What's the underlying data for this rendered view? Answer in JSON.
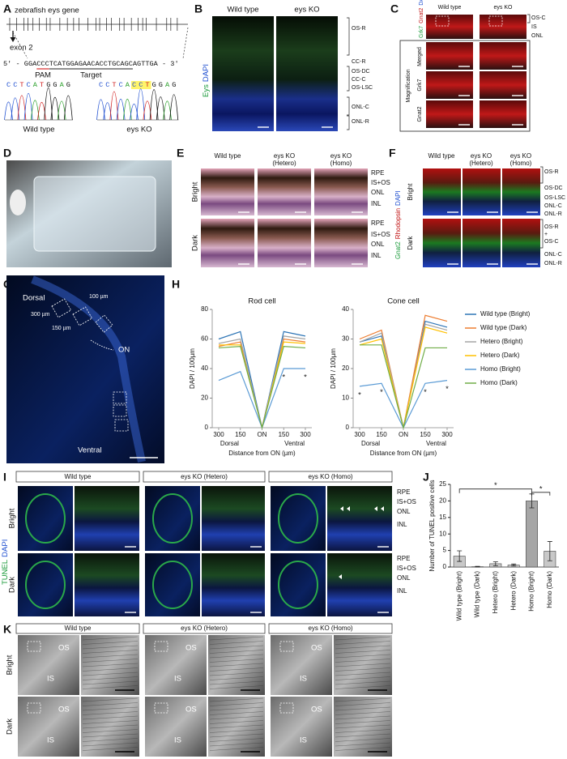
{
  "panels": {
    "labels": [
      "A",
      "B",
      "C",
      "D",
      "E",
      "F",
      "G",
      "H",
      "I",
      "J",
      "K"
    ],
    "A": {
      "gene": "zebrafish eys gene",
      "exon": "exon 2",
      "five": "5' - ",
      "seq": "GGACCCTCATGGAGAACACCTGCAGCAGTTGA",
      "three": " - 3'",
      "pam": "PAM",
      "target": "Target",
      "wt_seq": "CCTCATGGAG",
      "ko_seq": "CCTCACCTGGAG",
      "wt": "Wild type",
      "ko": "eys KO"
    },
    "B": {
      "columns": [
        "Wild type",
        "eys KO"
      ],
      "stain": [
        "Eys",
        "DAPI"
      ],
      "layers": [
        "OS-R",
        "CC-R",
        "OS-DC",
        "CC-C",
        "OS-LSC",
        "ONL-C",
        "ONL-R"
      ]
    },
    "C": {
      "columns": [
        "Wild type",
        "eys KO"
      ],
      "stain": [
        "Grk7",
        "Gnat2",
        "DAPI"
      ],
      "layers": [
        "OS-C",
        "IS",
        "ONL"
      ],
      "magnification": "Magnification",
      "rows": [
        "Merged",
        "Grk7",
        "Gnat2"
      ]
    },
    "E": {
      "columns": [
        [
          "Wild type"
        ],
        [
          "eys KO",
          "(Hetero)"
        ],
        [
          "eys KO",
          "(Homo)"
        ]
      ],
      "rows": [
        "Bright",
        "Dark"
      ],
      "layers": [
        "RPE",
        "IS+OS",
        "ONL",
        "INL"
      ]
    },
    "F": {
      "columns": [
        [
          "Wild type"
        ],
        [
          "eys KO",
          "(Hetero)"
        ],
        [
          "eys KO",
          "(Homo)"
        ]
      ],
      "stain": [
        "Gnat2",
        "Rhodopsin",
        "DAPI"
      ],
      "rows": [
        "Bright",
        "Dark"
      ],
      "layers_bright": [
        "OS-R",
        "OS-DC",
        "OS-LSC",
        "ONL-C",
        "ONL-R"
      ],
      "layers_dark": [
        "OS-R",
        "+",
        "OS-C",
        "ONL-C",
        "ONL-R"
      ]
    },
    "G": {
      "labels": [
        "Dorsal",
        "100 µm",
        "300 µm",
        "150 µm",
        "ON",
        "Ventral"
      ]
    },
    "I": {
      "columns": [
        "Wild type",
        "eys KO (Hetero)",
        "eys KO (Homo)"
      ],
      "stain": [
        "TUNEL",
        "DAPI"
      ],
      "rows": [
        "Bright",
        "Dark"
      ],
      "layers": [
        "RPE",
        "IS+OS",
        "ONL",
        "INL"
      ]
    },
    "K": {
      "columns": [
        "Wild type",
        "eys KO (Hetero)",
        "eys KO (Homo)"
      ],
      "rows": [
        "Bright",
        "Dark"
      ],
      "os": "OS",
      "is": "IS"
    }
  },
  "chart_data": [
    {
      "type": "line",
      "title": "Rod cell",
      "categories": [
        "300",
        "150",
        "ON",
        "150",
        "300"
      ],
      "regions": [
        "Dorsal",
        "Ventral"
      ],
      "xlabel": "Distance from ON (µm)",
      "ylabel": "DAPI / 100µm",
      "ylim": [
        0,
        80
      ],
      "yticks": [
        0,
        20,
        40,
        60,
        80
      ],
      "annotations": [
        "*",
        "*"
      ],
      "series": [
        {
          "color": "#2e75b6",
          "values": [
            60,
            65,
            0,
            65,
            62
          ]
        },
        {
          "color": "#ed7d31",
          "values": [
            55,
            58,
            0,
            60,
            58
          ]
        },
        {
          "color": "#a5a5a5",
          "values": [
            57,
            60,
            0,
            62,
            60
          ]
        },
        {
          "color": "#ffc000",
          "values": [
            56,
            56,
            0,
            58,
            57
          ]
        },
        {
          "color": "#5b9bd5",
          "values": [
            32,
            38,
            0,
            40,
            40
          ]
        },
        {
          "color": "#70ad47",
          "values": [
            54,
            55,
            0,
            55,
            54
          ]
        }
      ]
    },
    {
      "type": "line",
      "title": "Cone cell",
      "categories": [
        "300",
        "150",
        "ON",
        "150",
        "300"
      ],
      "regions": [
        "Dorsal",
        "Ventral"
      ],
      "xlabel": "Distance from ON (µm)",
      "ylabel": "DAPI / 100µm",
      "ylim": [
        0,
        40
      ],
      "yticks": [
        0,
        10,
        20,
        30,
        40
      ],
      "annotations": [
        "*",
        "*",
        "*",
        "*"
      ],
      "series": [
        {
          "name": "Wild type (Bright)",
          "color": "#2e75b6",
          "values": [
            29,
            31,
            0,
            36,
            34
          ]
        },
        {
          "name": "Wild type (Dark)",
          "color": "#ed7d31",
          "values": [
            30,
            33,
            0,
            38,
            36
          ]
        },
        {
          "name": "Hetero (Bright)",
          "color": "#a5a5a5",
          "values": [
            29,
            32,
            0,
            35,
            33
          ]
        },
        {
          "name": "Hetero (Dark)",
          "color": "#ffc000",
          "values": [
            28,
            30,
            0,
            34,
            32
          ]
        },
        {
          "name": "Homo (Bright)",
          "color": "#5b9bd5",
          "values": [
            14,
            15,
            0,
            15,
            16
          ]
        },
        {
          "name": "Homo (Dark)",
          "color": "#70ad47",
          "values": [
            28,
            28,
            0,
            27,
            27
          ]
        }
      ]
    },
    {
      "type": "bar",
      "ylabel": "Number of TUNEL positive cells",
      "categories": [
        "Wild type (Bright)",
        "Wild type (Dark)",
        "Hetero (Bright)",
        "Hetero (Dark)",
        "Homo (Bright)",
        "Homo (Dark)"
      ],
      "values": [
        3.3,
        0.1,
        1.0,
        0.6,
        20,
        4.8
      ],
      "errors": [
        1.6,
        0.1,
        0.6,
        0.3,
        2.1,
        2.9
      ],
      "colors": [
        "#c8c8c8",
        "#c8c8c8",
        "#c8c8c8",
        "#c8c8c8",
        "#a6a6a6",
        "#c8c8c8"
      ],
      "ylim": [
        0,
        25
      ],
      "yticks": [
        0,
        5,
        10,
        15,
        20,
        25
      ],
      "annotations": [
        "*",
        "*"
      ]
    }
  ]
}
